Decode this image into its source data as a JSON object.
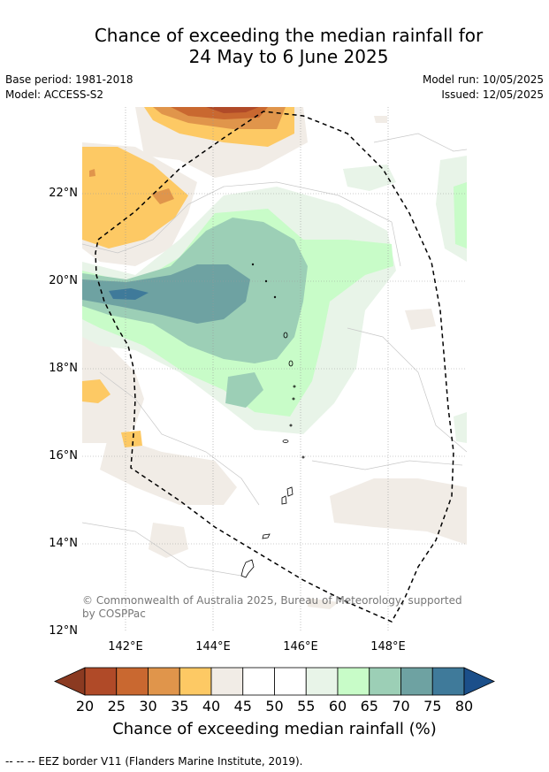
{
  "title": {
    "line1": "Chance of exceeding the median rainfall for",
    "line2": "24 May to 6 June 2025"
  },
  "meta": {
    "base_period": "Base period: 1981-2018",
    "model": "Model: ACCESS-S2",
    "model_run": "Model run: 10/05/2025",
    "issued": "Issued: 12/05/2025"
  },
  "map": {
    "lat_labels": [
      "22°N",
      "20°N",
      "18°N",
      "16°N",
      "14°N",
      "12°N"
    ],
    "lon_labels": [
      "142°E",
      "144°E",
      "146°E",
      "148°E"
    ],
    "copyright": "© Commonwealth of Australia 2025, Bureau of Meteorology, supported by COSPPac"
  },
  "colorbar": {
    "ticks": [
      "20",
      "25",
      "30",
      "35",
      "40",
      "45",
      "50",
      "55",
      "60",
      "65",
      "70",
      "75",
      "80"
    ],
    "colors": [
      "#8b3a21",
      "#b04a28",
      "#c96830",
      "#e0954b",
      "#fdc964",
      "#f1ece6",
      "#ffffff",
      "#ffffff",
      "#e8f4e8",
      "#c8fcc8",
      "#9ccfb6",
      "#6ea2a2",
      "#3f7a9a",
      "#1b4f8a"
    ],
    "title": "Chance of exceeding median rainfall (%)"
  },
  "footnote": "--  --  -- EEZ border V11 (Flanders Marine Institute, 2019)."
}
